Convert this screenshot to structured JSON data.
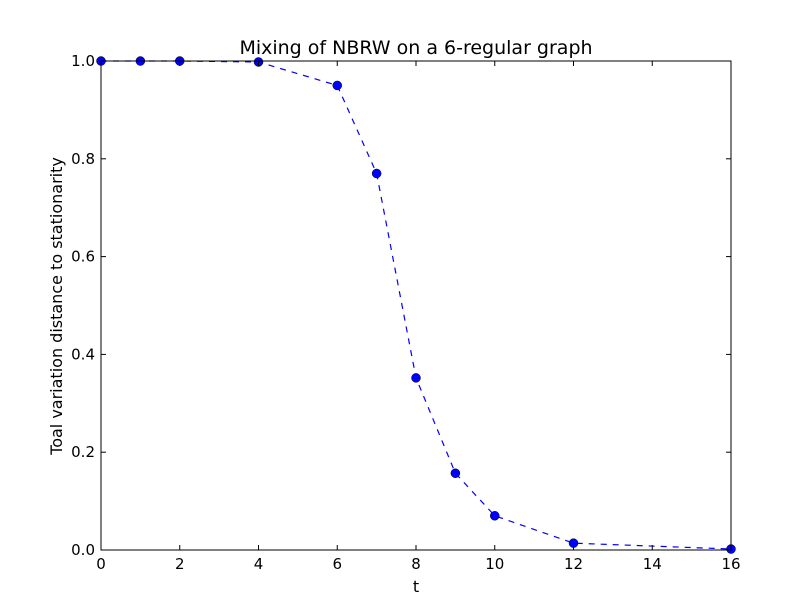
{
  "chart_data": {
    "type": "line",
    "title": "Mixing of NBRW on a 6-regular graph",
    "xlabel": "t",
    "ylabel": "Toal variation distance to stationarity",
    "xlim": [
      0,
      16
    ],
    "ylim": [
      0.0,
      1.0
    ],
    "xticks": [
      "0",
      "2",
      "4",
      "6",
      "8",
      "10",
      "12",
      "14",
      "16"
    ],
    "yticks": [
      "0.0",
      "0.2",
      "0.4",
      "0.6",
      "0.8",
      "1.0"
    ],
    "grid": false,
    "series": [
      {
        "color": "#0000ff",
        "line_style": "dashed",
        "marker": "circle",
        "x": [
          0,
          1,
          2,
          4,
          6,
          7,
          8,
          9,
          10,
          12,
          16
        ],
        "y": [
          1.0,
          1.0,
          1.0,
          0.998,
          0.95,
          0.77,
          0.352,
          0.157,
          0.07,
          0.014,
          0.002
        ]
      }
    ]
  }
}
